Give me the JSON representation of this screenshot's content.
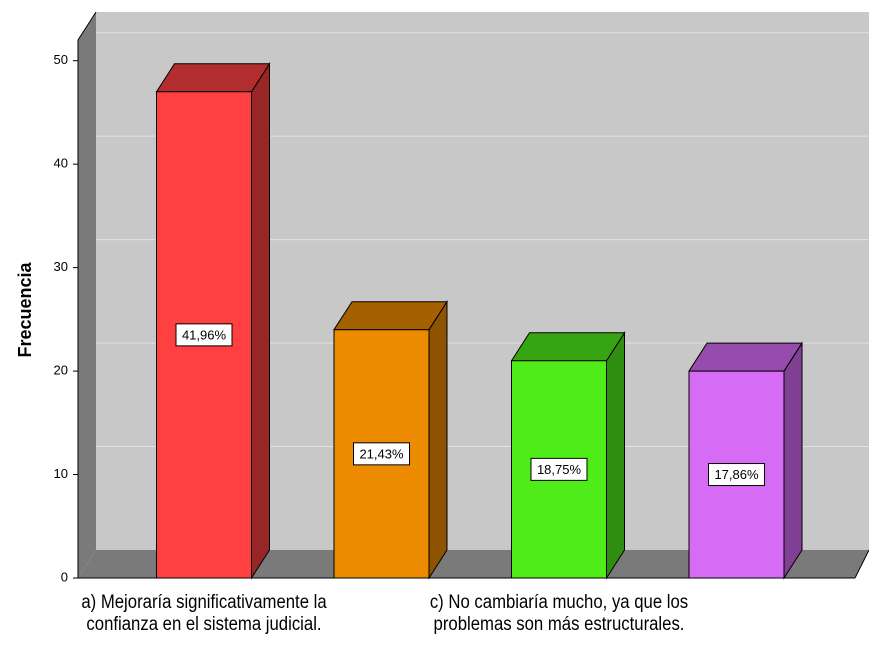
{
  "chart_data": {
    "type": "bar3d",
    "y_label": "Frecuencia",
    "categories": [
      "a) Mejoraría significativamente la confianza en el sistema judicial.",
      null,
      "c) No cambiaría mucho, ya que los problemas son más estructurales.",
      null
    ],
    "values": [
      47,
      24,
      21,
      20
    ],
    "percent_values": [
      41.96,
      21.43,
      18.75,
      17.86
    ],
    "percent_labels": [
      "41,96%",
      "21,43%",
      "18,75%",
      "17,86%"
    ],
    "colors": [
      "#ff4040",
      "#ec8a00",
      "#4fec1a",
      "#d66cf6"
    ],
    "ylim": [
      0,
      52
    ],
    "yticks": [
      0,
      10,
      20,
      30,
      40,
      50
    ],
    "grid": true
  }
}
